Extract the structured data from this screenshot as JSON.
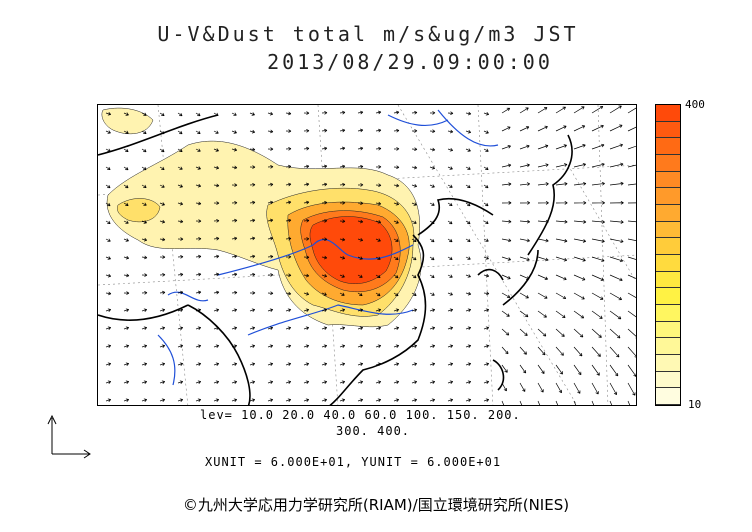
{
  "title": {
    "line1": "U-V&Dust total m/s&ug/m3 JST",
    "line2": "2013/08/29.09:00:00"
  },
  "colorbar": {
    "max_label": "400",
    "min_label": "10",
    "colors": [
      "#ff4a0a",
      "#ff5a10",
      "#ff6a14",
      "#ff7a1c",
      "#ff8a24",
      "#ff9a2a",
      "#ffaa30",
      "#ffbb36",
      "#ffcc3a",
      "#ffdb3e",
      "#ffe840",
      "#fff244",
      "#fff660",
      "#fff77c",
      "#fff898",
      "#fff9b4",
      "#fffbcc",
      "#fffde0"
    ]
  },
  "legend": {
    "levels_line1": "lev= 10.0 20.0 40.0 60.0 100. 150. 200.",
    "levels_line2": "300. 400.",
    "unit_line": "XUNIT = 6.000E+01, YUNIT = 6.000E+01"
  },
  "copyright": "©九州大学応用力学研究所(RIAM)/国立環境研究所(NIES)",
  "map_colors": {
    "river": "#1f4fd8",
    "coast": "#000000",
    "dust_low": "#fff3b0",
    "dust_mid": "#ffd54a",
    "dust_high": "#ff8a24",
    "dust_core": "#ff4a0a"
  }
}
